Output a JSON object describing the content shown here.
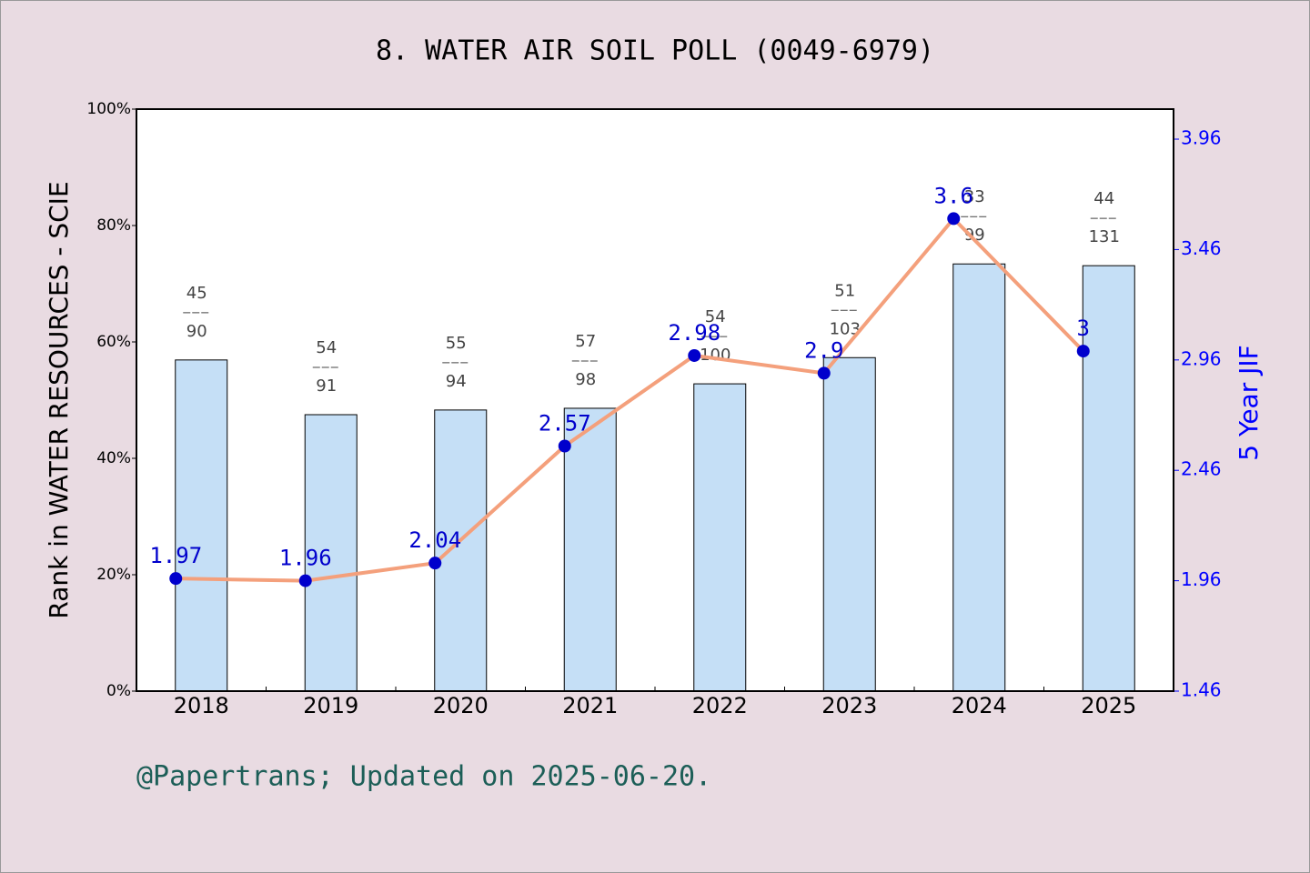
{
  "chart_data": {
    "type": "bar_line",
    "title": "8. WATER AIR SOIL POLL (0049-6979)",
    "y_label": "Rank in WATER RESOURCES - SCIE",
    "y2_label": "5 Year JIF",
    "footer": "@Papertrans; Updated on 2025-06-20.",
    "categories": [
      "2018",
      "2019",
      "2020",
      "2021",
      "2022",
      "2023",
      "2024",
      "2025"
    ],
    "series": [
      {
        "type": "bar",
        "color": "#c5dff6",
        "values": [
          56.9,
          47.5,
          48.3,
          48.6,
          52.8,
          57.3,
          73.4,
          73.1
        ],
        "rank_labels": [
          "45",
          "54",
          "55",
          "57",
          "54",
          "51",
          "33",
          "44"
        ],
        "total_labels": [
          "90",
          "91",
          "94",
          "98",
          "100",
          "103",
          "99",
          "131"
        ]
      },
      {
        "type": "line",
        "axis": "y2",
        "color": "#f4a07c",
        "marker_color": "#0000cc",
        "values": [
          1.97,
          1.96,
          2.04,
          2.57,
          2.98,
          2.9,
          3.6,
          3
        ]
      }
    ],
    "ylim": [
      0,
      100
    ],
    "yticks": [
      {
        "value": 0,
        "label": "0%"
      },
      {
        "value": 20,
        "label": "20%"
      },
      {
        "value": 40,
        "label": "40%"
      },
      {
        "value": 60,
        "label": "60%"
      },
      {
        "value": 80,
        "label": "80%"
      },
      {
        "value": 100,
        "label": "100%"
      }
    ],
    "y2lim": [
      1.46,
      4.096
    ],
    "y2ticks": [
      1.46,
      1.96,
      2.46,
      2.96,
      3.46,
      3.96
    ],
    "grid": false
  }
}
